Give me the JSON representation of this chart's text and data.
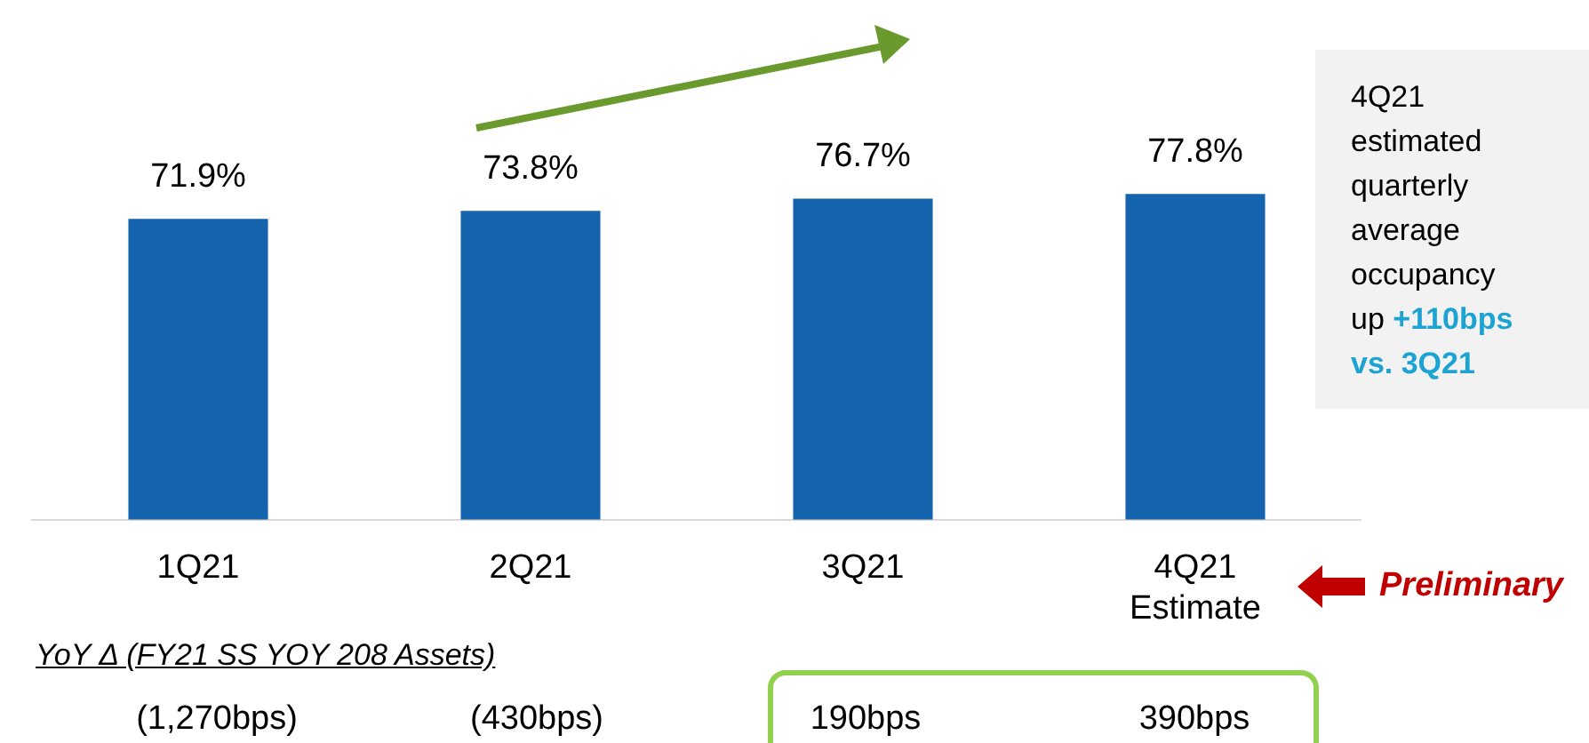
{
  "chart_data": {
    "type": "bar",
    "categories": [
      "1Q21",
      "2Q21",
      "3Q21",
      "4Q21 Estimate"
    ],
    "values": [
      71.9,
      73.8,
      76.7,
      77.8
    ],
    "color": "#1764ae",
    "value_labels": [
      "71.9%",
      "73.8%",
      "76.7%",
      "77.8%"
    ],
    "tick_labels": "x",
    "grid": false,
    "legend": false,
    "annotations": [
      "4Q21 estimated quarterly average occupancy up",
      "+110bps vs. 3Q21",
      "Preliminary",
      "YoY Δ (FY21 SS YOY 208 Assets)",
      "(1,270bps)",
      "(430bps)",
      "190bps",
      "390bps"
    ]
  }
}
